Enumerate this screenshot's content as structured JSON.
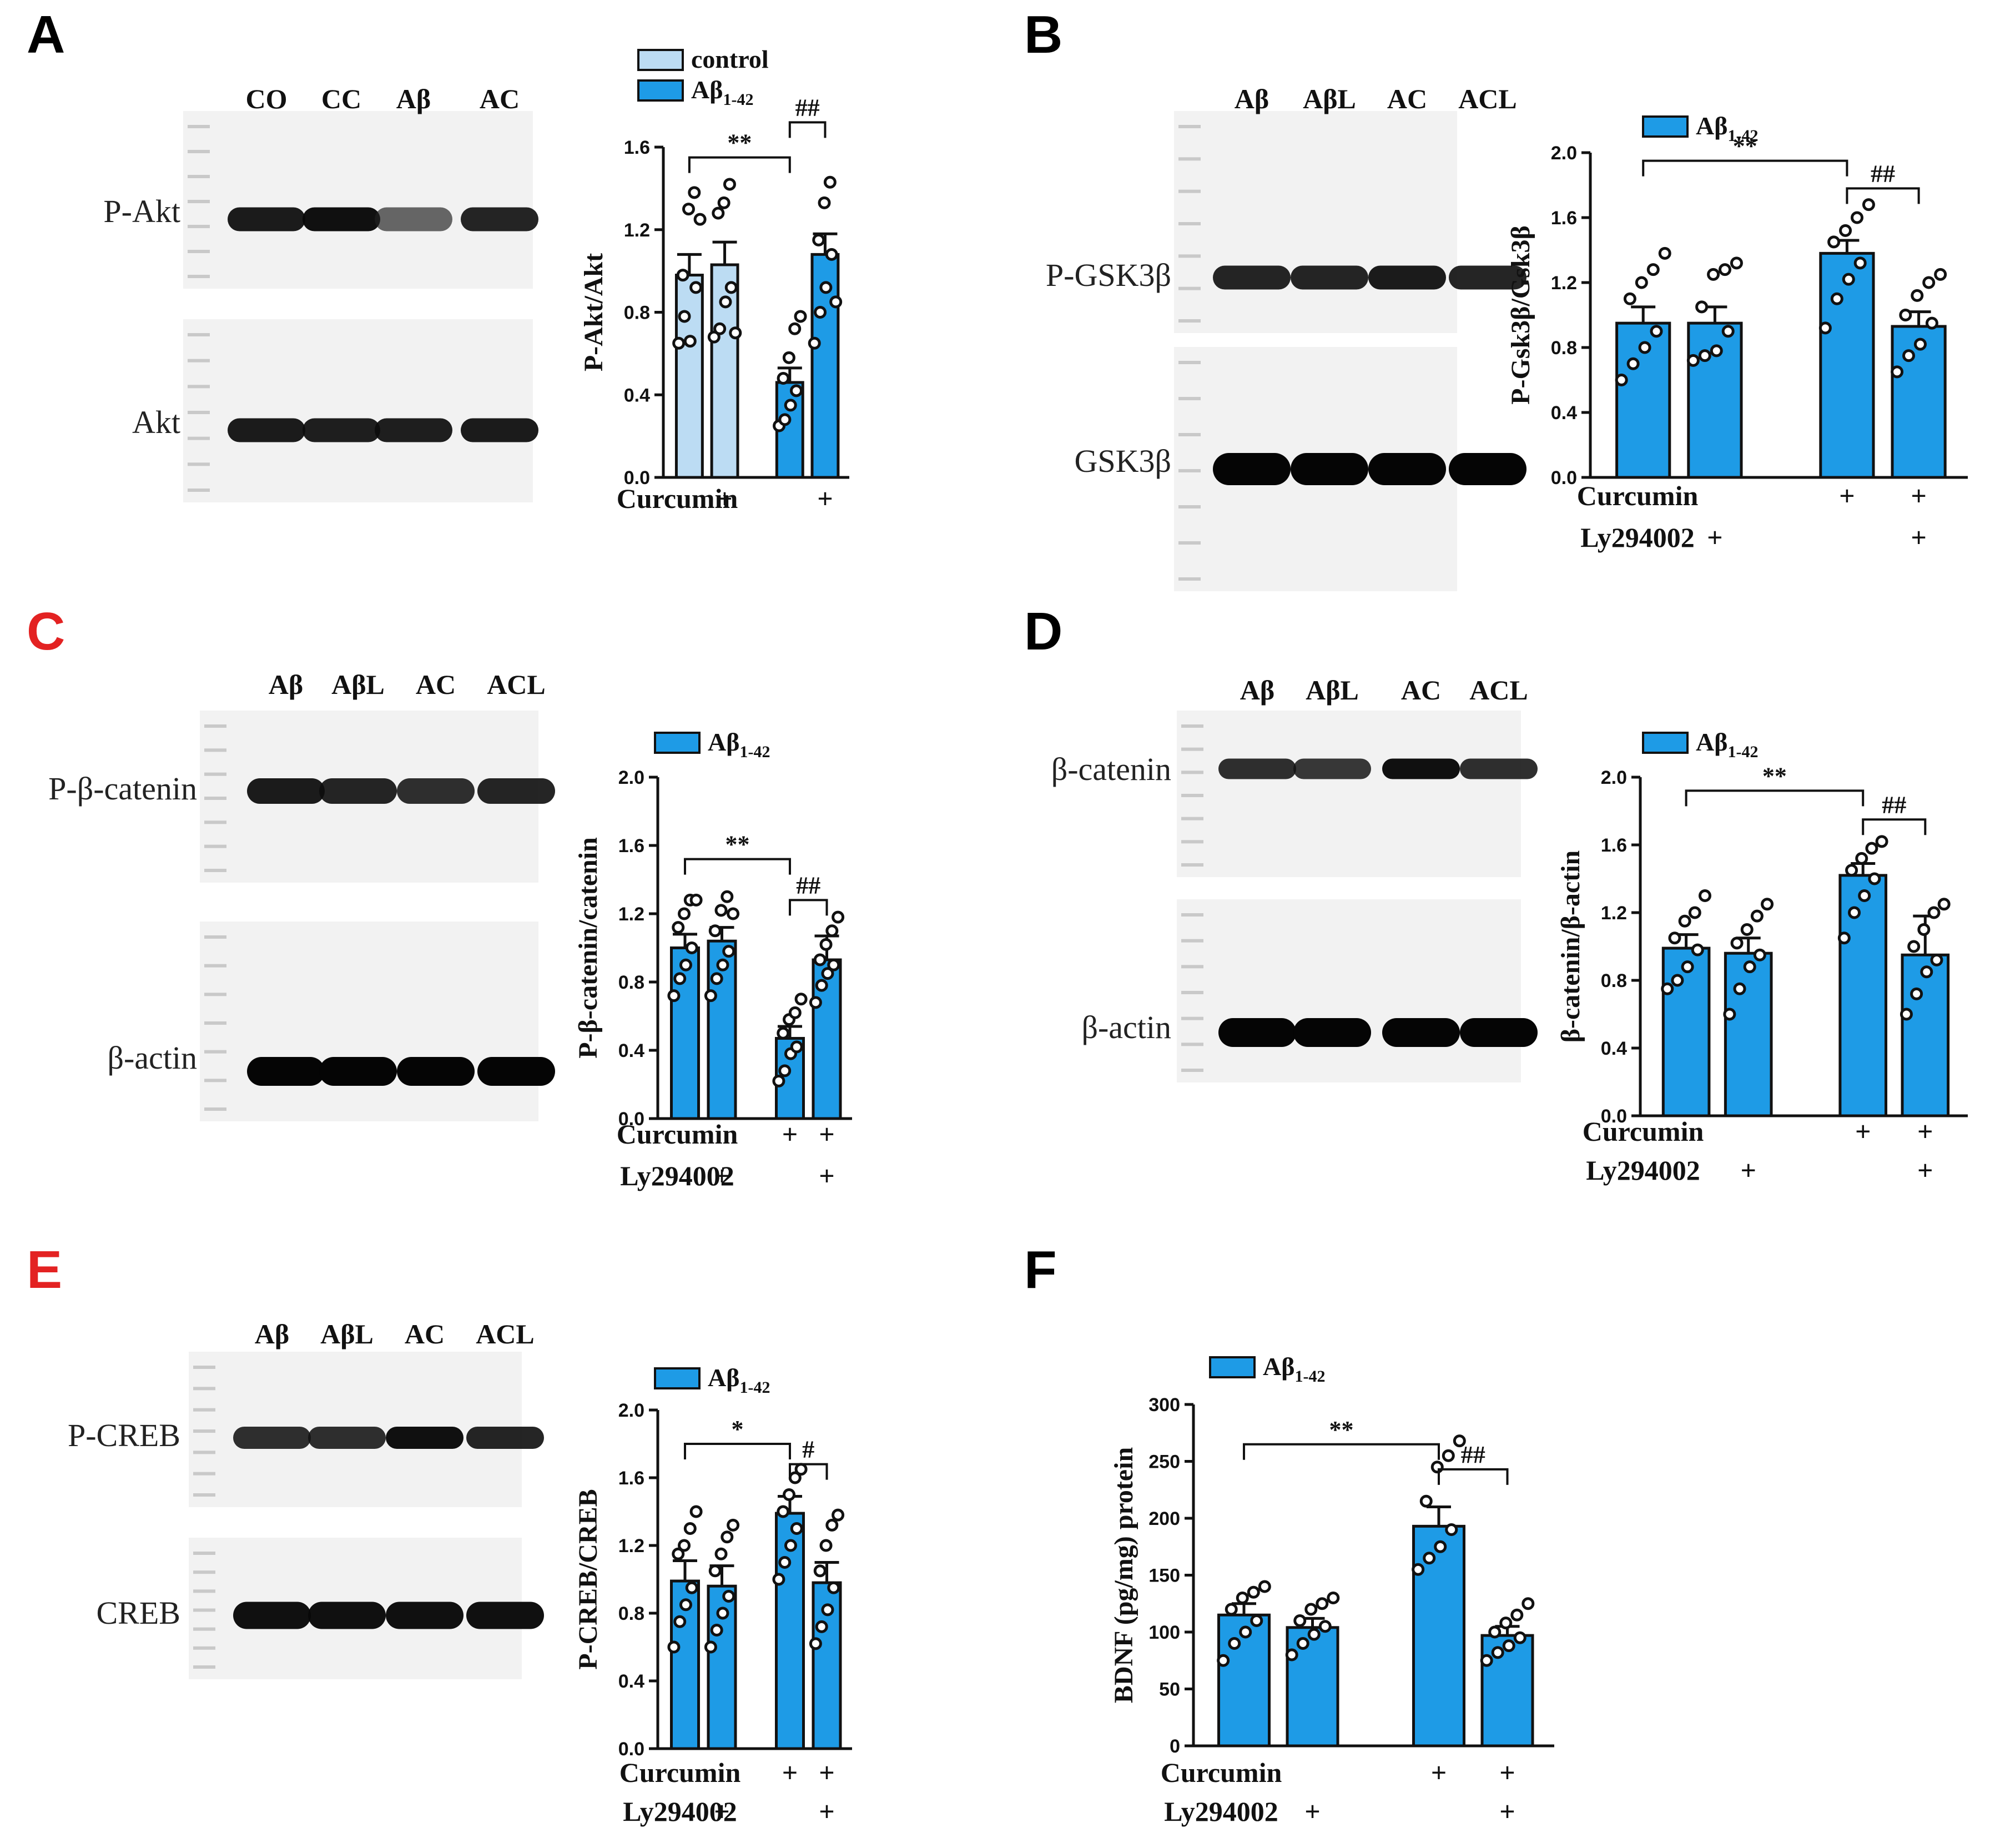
{
  "colors": {
    "abeta": "#1e9be6",
    "control": "#bcdcf3",
    "stroke": "#111111",
    "blot_bg": "#f2f2f2",
    "letter_black": "#000000",
    "letter_red": "#e32222"
  },
  "panels": [
    {
      "letter": "A",
      "letter_color": "letter_black",
      "lanes": [
        "CO",
        "CC",
        "Aβ",
        "AC"
      ],
      "blots": [
        {
          "label": "P-Akt",
          "band_intensity": [
            0.9,
            0.95,
            0.5,
            0.85
          ],
          "band_thickness": 0.7
        },
        {
          "label": "Akt",
          "band_intensity": [
            0.9,
            0.88,
            0.88,
            0.9
          ],
          "band_thickness": 0.7
        }
      ],
      "legend": [
        {
          "label": "control",
          "color": "control"
        },
        {
          "label": "Aβ",
          "sub": "1-42",
          "color": "abeta"
        }
      ],
      "treatments": [
        {
          "label": "Curcumin",
          "marks": [
            "",
            "+",
            "",
            "+"
          ]
        }
      ]
    },
    {
      "letter": "B",
      "letter_color": "letter_black",
      "lanes": [
        "Aβ",
        "AβL",
        "AC",
        "ACL"
      ],
      "blots": [
        {
          "label": "P-GSK3β",
          "band_intensity": [
            0.85,
            0.85,
            0.9,
            0.85
          ],
          "band_thickness": 0.7
        },
        {
          "label": "GSK3β",
          "band_intensity": [
            1.0,
            1.0,
            1.0,
            1.0
          ],
          "band_thickness": 1.2
        }
      ],
      "legend": [
        {
          "label": "Aβ",
          "sub": "1-42",
          "color": "abeta"
        }
      ],
      "treatments": [
        {
          "label": "Curcumin",
          "marks": [
            "",
            "",
            "+",
            "+"
          ]
        },
        {
          "label": "Ly294002",
          "marks": [
            "",
            "+",
            "",
            "+"
          ]
        }
      ]
    },
    {
      "letter": "C",
      "letter_color": "letter_red",
      "lanes": [
        "Aβ",
        "AβL",
        "AC",
        "ACL"
      ],
      "blots": [
        {
          "label": "P-β-catenin",
          "band_intensity": [
            0.9,
            0.85,
            0.8,
            0.85
          ],
          "band_thickness": 0.8
        },
        {
          "label": "β-actin",
          "band_intensity": [
            1.0,
            1.0,
            1.0,
            1.0
          ],
          "band_thickness": 1.0
        }
      ],
      "legend": [
        {
          "label": "Aβ",
          "sub": "1-42",
          "color": "abeta"
        }
      ],
      "treatments": [
        {
          "label": "Curcumin",
          "marks": [
            "",
            "",
            "+",
            "+"
          ]
        },
        {
          "label": "Ly294002",
          "marks": [
            "",
            "+",
            "",
            "+"
          ]
        }
      ]
    },
    {
      "letter": "D",
      "letter_color": "letter_black",
      "lanes": [
        "Aβ",
        "AβL",
        "AC",
        "ACL"
      ],
      "blots": [
        {
          "label": "β-catenin",
          "band_intensity": [
            0.8,
            0.75,
            0.95,
            0.8
          ],
          "band_thickness": 0.5
        },
        {
          "label": "β-actin",
          "band_intensity": [
            1.0,
            1.0,
            1.0,
            1.0
          ],
          "band_thickness": 1.0
        }
      ],
      "legend": [
        {
          "label": "Aβ",
          "sub": "1-42",
          "color": "abeta"
        }
      ],
      "treatments": [
        {
          "label": "Curcumin",
          "marks": [
            "",
            "",
            "+",
            "+"
          ]
        },
        {
          "label": "Ly294002",
          "marks": [
            "",
            "+",
            "",
            "+"
          ]
        }
      ]
    },
    {
      "letter": "E",
      "letter_color": "letter_red",
      "lanes": [
        "Aβ",
        "AβL",
        "AC",
        "ACL"
      ],
      "blots": [
        {
          "label": "P-CREB",
          "band_intensity": [
            0.8,
            0.8,
            0.95,
            0.85
          ],
          "band_thickness": 0.6
        },
        {
          "label": "CREB",
          "band_intensity": [
            0.95,
            0.95,
            0.95,
            0.95
          ],
          "band_thickness": 0.9
        }
      ],
      "legend": [
        {
          "label": "Aβ",
          "sub": "1-42",
          "color": "abeta"
        }
      ],
      "treatments": [
        {
          "label": "Curcumin",
          "marks": [
            "",
            "",
            "+",
            "+"
          ]
        },
        {
          "label": "Ly294002",
          "marks": [
            "",
            "+",
            "",
            "+"
          ]
        }
      ]
    },
    {
      "letter": "F",
      "letter_color": "letter_black",
      "lanes": [],
      "blots": [],
      "legend": [
        {
          "label": "Aβ",
          "sub": "1-42",
          "color": "abeta"
        }
      ],
      "treatments": [
        {
          "label": "Curcumin",
          "marks": [
            "",
            "",
            "+",
            "+"
          ]
        },
        {
          "label": "Ly294002",
          "marks": [
            "",
            "+",
            "",
            "+"
          ]
        }
      ]
    }
  ],
  "chart_data": [
    {
      "panel": "A",
      "type": "bar",
      "ylabel": "P-Akt/Akt",
      "ylim": [
        0,
        1.6
      ],
      "yticks": [
        "0.0",
        "0.4",
        "0.8",
        "1.2",
        "1.6"
      ],
      "bars": [
        {
          "mean": 0.98,
          "sem": 0.1,
          "color": "control",
          "points": [
            0.65,
            0.78,
            0.66,
            0.92,
            0.98,
            1.3,
            1.38,
            1.25
          ]
        },
        {
          "mean": 1.03,
          "sem": 0.11,
          "color": "control",
          "points": [
            0.68,
            0.72,
            0.85,
            0.92,
            1.28,
            1.33,
            1.42,
            0.7
          ]
        },
        {
          "mean": 0.46,
          "sem": 0.07,
          "color": "abeta",
          "points": [
            0.25,
            0.28,
            0.35,
            0.42,
            0.48,
            0.58,
            0.72,
            0.78
          ]
        },
        {
          "mean": 1.08,
          "sem": 0.1,
          "color": "abeta",
          "points": [
            0.65,
            0.8,
            0.92,
            1.08,
            1.15,
            1.33,
            1.43,
            0.85
          ]
        }
      ],
      "significance": [
        {
          "from": 0,
          "to": 2,
          "y": 1.55,
          "label": "**"
        },
        {
          "from": 2,
          "to": 3,
          "y": 1.72,
          "label": "##"
        }
      ]
    },
    {
      "panel": "B",
      "type": "bar",
      "ylabel": "P-Gsk3β/Gsk3β",
      "ylim": [
        0,
        2.0
      ],
      "yticks": [
        "0.0",
        "0.4",
        "0.8",
        "1.2",
        "1.6",
        "2.0"
      ],
      "bars": [
        {
          "mean": 0.95,
          "sem": 0.1,
          "color": "abeta",
          "points": [
            0.6,
            0.7,
            0.8,
            0.9,
            1.1,
            1.2,
            1.28,
            1.38
          ]
        },
        {
          "mean": 0.95,
          "sem": 0.1,
          "color": "abeta",
          "points": [
            0.72,
            0.75,
            0.78,
            0.9,
            1.05,
            1.25,
            1.28,
            1.32
          ]
        },
        {
          "mean": 1.38,
          "sem": 0.08,
          "color": "abeta",
          "points": [
            0.92,
            1.1,
            1.22,
            1.32,
            1.45,
            1.52,
            1.6,
            1.68
          ]
        },
        {
          "mean": 0.93,
          "sem": 0.09,
          "color": "abeta",
          "points": [
            0.65,
            0.75,
            0.82,
            0.95,
            1.0,
            1.12,
            1.2,
            1.25
          ]
        }
      ],
      "significance": [
        {
          "from": 0,
          "to": 2,
          "y": 1.95,
          "label": "**"
        },
        {
          "from": 2,
          "to": 3,
          "y": 1.78,
          "label": "##"
        }
      ]
    },
    {
      "panel": "C",
      "type": "bar",
      "ylabel": "P-β-catenin/catenin",
      "ylim": [
        0,
        2.0
      ],
      "yticks": [
        "0.0",
        "0.4",
        "0.8",
        "1.2",
        "1.6",
        "2.0"
      ],
      "bars": [
        {
          "mean": 1.0,
          "sem": 0.08,
          "color": "abeta",
          "points": [
            0.72,
            0.82,
            0.9,
            1.0,
            1.12,
            1.2,
            1.28,
            1.28
          ]
        },
        {
          "mean": 1.04,
          "sem": 0.08,
          "color": "abeta",
          "points": [
            0.72,
            0.82,
            0.9,
            0.98,
            1.1,
            1.22,
            1.3,
            1.2
          ]
        },
        {
          "mean": 0.47,
          "sem": 0.07,
          "color": "abeta",
          "points": [
            0.22,
            0.28,
            0.38,
            0.42,
            0.5,
            0.58,
            0.62,
            0.7
          ]
        },
        {
          "mean": 0.93,
          "sem": 0.14,
          "color": "abeta",
          "points": [
            0.68,
            0.78,
            0.85,
            0.9,
            0.93,
            1.02,
            1.1,
            1.18
          ]
        }
      ],
      "significance": [
        {
          "from": 0,
          "to": 2,
          "y": 1.52,
          "label": "**"
        },
        {
          "from": 2,
          "to": 3,
          "y": 1.28,
          "label": "##"
        }
      ]
    },
    {
      "panel": "D",
      "type": "bar",
      "ylabel": "β-catenin/β-actin",
      "ylim": [
        0,
        2.0
      ],
      "yticks": [
        "0.0",
        "0.4",
        "0.8",
        "1.2",
        "1.6",
        "2.0"
      ],
      "bars": [
        {
          "mean": 0.99,
          "sem": 0.08,
          "color": "abeta",
          "points": [
            0.75,
            0.8,
            0.88,
            0.98,
            1.05,
            1.15,
            1.2,
            1.3
          ]
        },
        {
          "mean": 0.96,
          "sem": 0.09,
          "color": "abeta",
          "points": [
            0.6,
            0.75,
            0.88,
            0.95,
            1.02,
            1.1,
            1.18,
            1.25
          ]
        },
        {
          "mean": 1.42,
          "sem": 0.07,
          "color": "abeta",
          "points": [
            1.05,
            1.2,
            1.3,
            1.4,
            1.45,
            1.52,
            1.58,
            1.62
          ]
        },
        {
          "mean": 0.95,
          "sem": 0.23,
          "color": "abeta",
          "points": [
            0.6,
            0.72,
            0.85,
            0.92,
            1.0,
            1.1,
            1.2,
            1.25
          ]
        }
      ],
      "significance": [
        {
          "from": 0,
          "to": 2,
          "y": 1.92,
          "label": "**"
        },
        {
          "from": 2,
          "to": 3,
          "y": 1.75,
          "label": "##"
        }
      ]
    },
    {
      "panel": "E",
      "type": "bar",
      "ylabel": "P-CREB/CREB",
      "ylim": [
        0,
        2.0
      ],
      "yticks": [
        "0.0",
        "0.4",
        "0.8",
        "1.2",
        "1.6",
        "2.0"
      ],
      "bars": [
        {
          "mean": 0.99,
          "sem": 0.12,
          "color": "abeta",
          "points": [
            0.6,
            0.75,
            0.85,
            0.95,
            1.15,
            1.2,
            1.3,
            1.4
          ]
        },
        {
          "mean": 0.96,
          "sem": 0.12,
          "color": "abeta",
          "points": [
            0.6,
            0.7,
            0.8,
            0.9,
            1.05,
            1.15,
            1.25,
            1.32
          ]
        },
        {
          "mean": 1.39,
          "sem": 0.1,
          "color": "abeta",
          "points": [
            1.0,
            1.1,
            1.2,
            1.3,
            1.4,
            1.5,
            1.6,
            1.65
          ]
        },
        {
          "mean": 0.98,
          "sem": 0.12,
          "color": "abeta",
          "points": [
            0.62,
            0.72,
            0.82,
            0.95,
            1.05,
            1.2,
            1.32,
            1.38
          ]
        }
      ],
      "significance": [
        {
          "from": 0,
          "to": 2,
          "y": 1.8,
          "label": "*"
        },
        {
          "from": 2,
          "to": 3,
          "y": 1.68,
          "label": "#"
        }
      ]
    },
    {
      "panel": "F",
      "type": "bar",
      "ylabel": "BDNF (pg/mg) protein",
      "ylim": [
        0,
        300
      ],
      "yticks": [
        "0",
        "50",
        "100",
        "150",
        "200",
        "250",
        "300"
      ],
      "bars": [
        {
          "mean": 115,
          "sem": 10,
          "color": "abeta",
          "points": [
            75,
            90,
            100,
            110,
            120,
            130,
            135,
            140
          ]
        },
        {
          "mean": 104,
          "sem": 8,
          "color": "abeta",
          "points": [
            80,
            90,
            98,
            105,
            110,
            120,
            125,
            130
          ]
        },
        {
          "mean": 193,
          "sem": 17,
          "color": "abeta",
          "points": [
            155,
            165,
            175,
            190,
            215,
            245,
            255,
            268
          ]
        },
        {
          "mean": 97,
          "sem": 8,
          "color": "abeta",
          "points": [
            75,
            82,
            88,
            95,
            100,
            108,
            115,
            125
          ]
        }
      ],
      "significance": [
        {
          "from": 0,
          "to": 2,
          "y": 265,
          "label": "**"
        },
        {
          "from": 2,
          "to": 3,
          "y": 243,
          "label": "##"
        }
      ]
    }
  ]
}
